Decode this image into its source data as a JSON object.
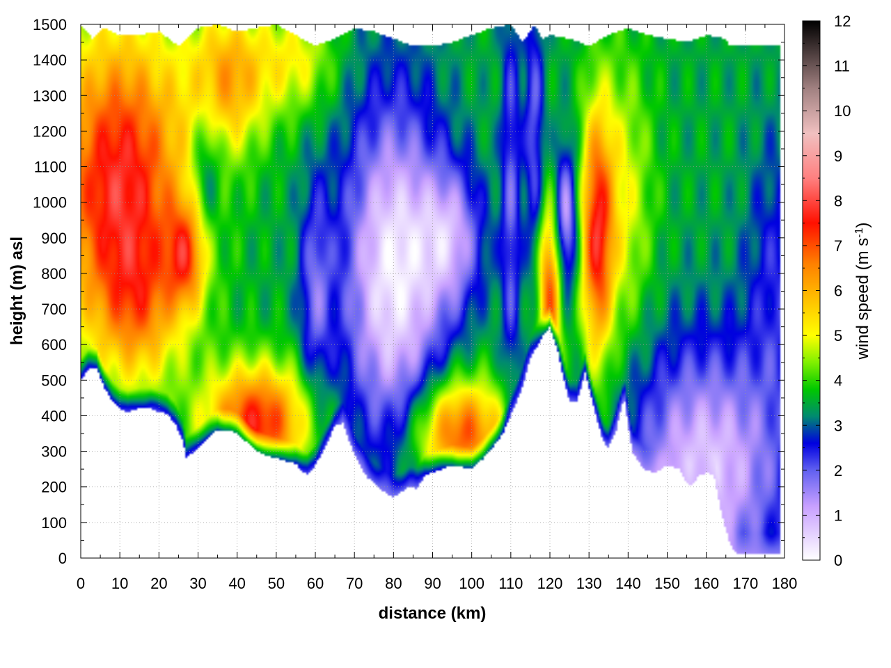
{
  "chart_data": {
    "type": "heatmap",
    "title": "",
    "xlabel": "distance (km)",
    "ylabel": "height (m) asl",
    "colorbar_label": {
      "text": "wind speed (m s",
      "superscript": "-1",
      "closing": ")"
    },
    "xlim": [
      0,
      180
    ],
    "ylim": [
      0,
      1500
    ],
    "zlim": [
      0,
      12
    ],
    "x_ticks": [
      0,
      10,
      20,
      30,
      40,
      50,
      60,
      70,
      80,
      90,
      100,
      110,
      120,
      130,
      140,
      150,
      160,
      170,
      180
    ],
    "x_tick_labels": [
      "0",
      "10",
      "20",
      "30",
      "40",
      "50",
      "60",
      "70",
      "80",
      "90",
      "100",
      "110",
      "120",
      "130",
      "140",
      "150",
      "160",
      "170",
      "180"
    ],
    "y_ticks": [
      0,
      100,
      200,
      300,
      400,
      500,
      600,
      700,
      800,
      900,
      1000,
      1100,
      1200,
      1300,
      1400,
      1500
    ],
    "y_tick_labels": [
      "0",
      "100",
      "200",
      "300",
      "400",
      "500",
      "600",
      "700",
      "800",
      "900",
      "1000",
      "1100",
      "1200",
      "1300",
      "1400",
      "1500"
    ],
    "colorbar_ticks": [
      0,
      1,
      2,
      3,
      4,
      5,
      6,
      7,
      8,
      9,
      10,
      11,
      12
    ],
    "colorbar_tick_labels": [
      "0",
      "1",
      "2",
      "3",
      "4",
      "5",
      "6",
      "7",
      "8",
      "9",
      "10",
      "11",
      "12"
    ],
    "grid": true,
    "colormap": [
      {
        "v": 0,
        "color": "#ffffff"
      },
      {
        "v": 1.2,
        "color": "#c8a0ff"
      },
      {
        "v": 2.0,
        "color": "#6060f0"
      },
      {
        "v": 2.6,
        "color": "#0000e0"
      },
      {
        "v": 3.2,
        "color": "#008a70"
      },
      {
        "v": 3.8,
        "color": "#00c800"
      },
      {
        "v": 4.4,
        "color": "#80f000"
      },
      {
        "v": 5.0,
        "color": "#ffff00"
      },
      {
        "v": 5.8,
        "color": "#ffc000"
      },
      {
        "v": 6.6,
        "color": "#ff8000"
      },
      {
        "v": 7.5,
        "color": "#ff1000"
      },
      {
        "v": 8.5,
        "color": "#ff8080"
      },
      {
        "v": 9.5,
        "color": "#f0c0c0"
      },
      {
        "v": 10.5,
        "color": "#a08080"
      },
      {
        "v": 12,
        "color": "#000000"
      }
    ],
    "terrain_km": [
      0,
      2,
      4,
      6,
      8,
      10,
      12,
      15,
      18,
      20,
      22,
      24,
      26,
      27,
      28,
      30,
      32,
      35,
      38,
      40,
      43,
      45,
      47,
      50,
      53,
      55,
      57,
      58,
      60,
      62,
      65,
      67,
      70,
      73,
      76,
      79,
      80,
      82,
      84,
      86,
      88,
      90,
      95,
      100,
      103,
      106,
      108,
      110,
      113,
      115,
      118,
      120,
      122,
      124,
      125,
      127,
      129,
      131,
      133,
      134,
      135,
      137,
      139,
      141,
      144,
      147,
      150,
      153,
      155,
      156,
      158,
      160,
      162,
      164,
      166,
      168,
      170,
      172,
      174,
      176,
      178
    ],
    "terrain_m": [
      500,
      530,
      535,
      480,
      440,
      420,
      410,
      420,
      420,
      410,
      405,
      380,
      330,
      280,
      290,
      310,
      330,
      360,
      360,
      350,
      320,
      300,
      290,
      280,
      270,
      265,
      240,
      235,
      260,
      300,
      370,
      380,
      290,
      230,
      200,
      175,
      170,
      185,
      200,
      195,
      230,
      240,
      260,
      250,
      280,
      320,
      350,
      400,
      480,
      560,
      620,
      650,
      580,
      480,
      440,
      440,
      520,
      430,
      350,
      320,
      310,
      360,
      450,
      300,
      250,
      240,
      260,
      250,
      210,
      200,
      230,
      240,
      230,
      120,
      40,
      10,
      10,
      10,
      10,
      10,
      10
    ],
    "top_km": [
      0,
      3,
      6,
      10,
      15,
      20,
      25,
      30,
      35,
      40,
      45,
      50,
      55,
      60,
      65,
      70,
      75,
      80,
      85,
      90,
      95,
      100,
      105,
      110,
      113,
      116,
      118,
      120,
      125,
      130,
      135,
      140,
      145,
      150,
      155,
      160,
      165,
      166,
      180
    ],
    "top_m": [
      1500,
      1460,
      1490,
      1470,
      1470,
      1480,
      1440,
      1490,
      1500,
      1480,
      1490,
      1500,
      1470,
      1440,
      1460,
      1490,
      1480,
      1460,
      1440,
      1440,
      1450,
      1470,
      1490,
      1500,
      1450,
      1500,
      1460,
      1470,
      1460,
      1440,
      1470,
      1490,
      1470,
      1460,
      1450,
      1470,
      1460,
      1440,
      1440
    ],
    "wind_field": {
      "background_ms": 3.5,
      "features": [
        {
          "name": "orange jet upper-left",
          "x_km": 10,
          "z_m": 1050,
          "rx_km": 18,
          "rz_m": 450,
          "amp_ms": 4.3
        },
        {
          "name": "jet near 27 km",
          "x_km": 27,
          "z_m": 850,
          "rx_km": 5,
          "rz_m": 150,
          "amp_ms": 2.5
        },
        {
          "name": "upper orange near 38 km",
          "x_km": 38,
          "z_m": 1350,
          "rx_km": 10,
          "rz_m": 200,
          "amp_ms": 2.5
        },
        {
          "name": "upper yellow near 55 km",
          "x_km": 55,
          "z_m": 1400,
          "rx_km": 10,
          "rz_m": 150,
          "amp_ms": 1.5
        },
        {
          "name": "low red jet 40-55 km",
          "x_km": 45,
          "z_m": 380,
          "rx_km": 13,
          "rz_m": 160,
          "amp_ms": 4.0
        },
        {
          "name": "low red jet 90-105 km",
          "x_km": 97,
          "z_m": 350,
          "rx_km": 12,
          "rz_m": 150,
          "amp_ms": 3.6
        },
        {
          "name": "orange near 15 km low",
          "x_km": 15,
          "z_m": 700,
          "rx_km": 10,
          "rz_m": 200,
          "amp_ms": 1.5
        },
        {
          "name": "calm core 70-100 km",
          "x_km": 80,
          "z_m": 800,
          "rx_km": 13,
          "rz_m": 480,
          "amp_ms": -3.3
        },
        {
          "name": "calm lobe near 95 km",
          "x_km": 95,
          "z_m": 900,
          "rx_km": 8,
          "rz_m": 200,
          "amp_ms": -2.0
        },
        {
          "name": "low speed near 60 km",
          "x_km": 60,
          "z_m": 750,
          "rx_km": 4,
          "rz_m": 300,
          "amp_ms": -1.5
        },
        {
          "name": "low speed near 32 km",
          "x_km": 32,
          "z_m": 1100,
          "rx_km": 4,
          "rz_m": 200,
          "amp_ms": -1.3
        },
        {
          "name": "narrow low band 110 km",
          "x_km": 110,
          "z_m": 1000,
          "rx_km": 2.5,
          "rz_m": 600,
          "amp_ms": -1.5
        },
        {
          "name": "narrow low band 116 km",
          "x_km": 116,
          "z_m": 1200,
          "rx_km": 2.5,
          "rz_m": 400,
          "amp_ms": -1.5
        },
        {
          "name": "red jet near 120 km",
          "x_km": 120,
          "z_m": 750,
          "rx_km": 3,
          "rz_m": 250,
          "amp_ms": 3.5
        },
        {
          "name": "calm core near 124 km",
          "x_km": 124,
          "z_m": 950,
          "rx_km": 3,
          "rz_m": 200,
          "amp_ms": -2.5
        },
        {
          "name": "red jet near 132 km",
          "x_km": 132,
          "z_m": 900,
          "rx_km": 4,
          "rz_m": 350,
          "amp_ms": 3.5
        },
        {
          "name": "yellow near 138 km",
          "x_km": 138,
          "z_m": 1000,
          "rx_km": 8,
          "rz_m": 400,
          "amp_ms": 1.5
        },
        {
          "name": "calm lower right",
          "x_km": 160,
          "z_m": 250,
          "rx_km": 20,
          "rz_m": 350,
          "amp_ms": -2.8
        },
        {
          "name": "low speed right edge",
          "x_km": 178,
          "z_m": 800,
          "rx_km": 8,
          "rz_m": 400,
          "amp_ms": -1.0
        }
      ]
    }
  }
}
